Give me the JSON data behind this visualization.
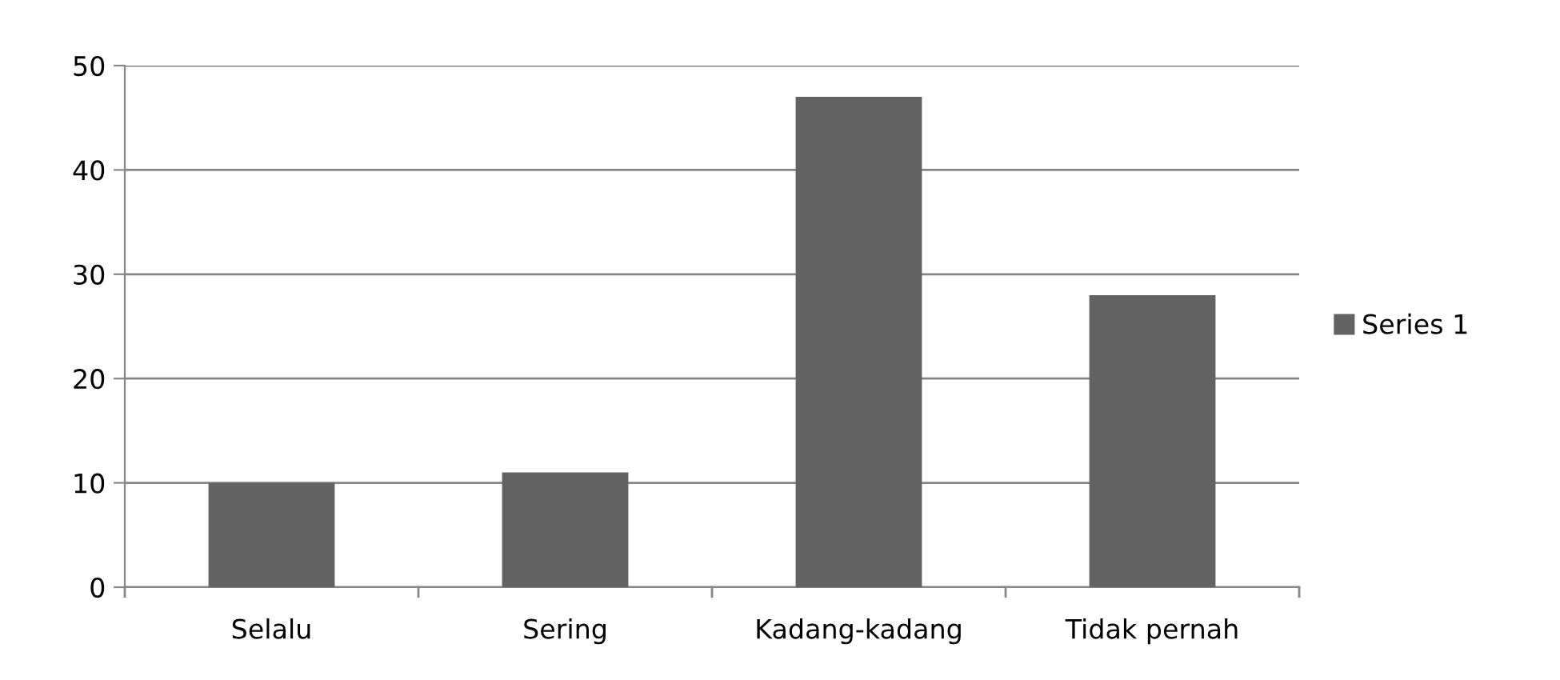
{
  "chart_data": {
    "type": "bar",
    "categories": [
      "Selalu",
      "Sering",
      "Kadang-kadang",
      "Tidak pernah"
    ],
    "series": [
      {
        "name": "Series 1",
        "color": "#636363",
        "values": [
          10,
          11,
          47,
          28
        ]
      }
    ],
    "ylim": [
      0,
      50
    ],
    "yticks": [
      0,
      10,
      20,
      30,
      40,
      50
    ],
    "grid": "y",
    "legend": "right"
  }
}
